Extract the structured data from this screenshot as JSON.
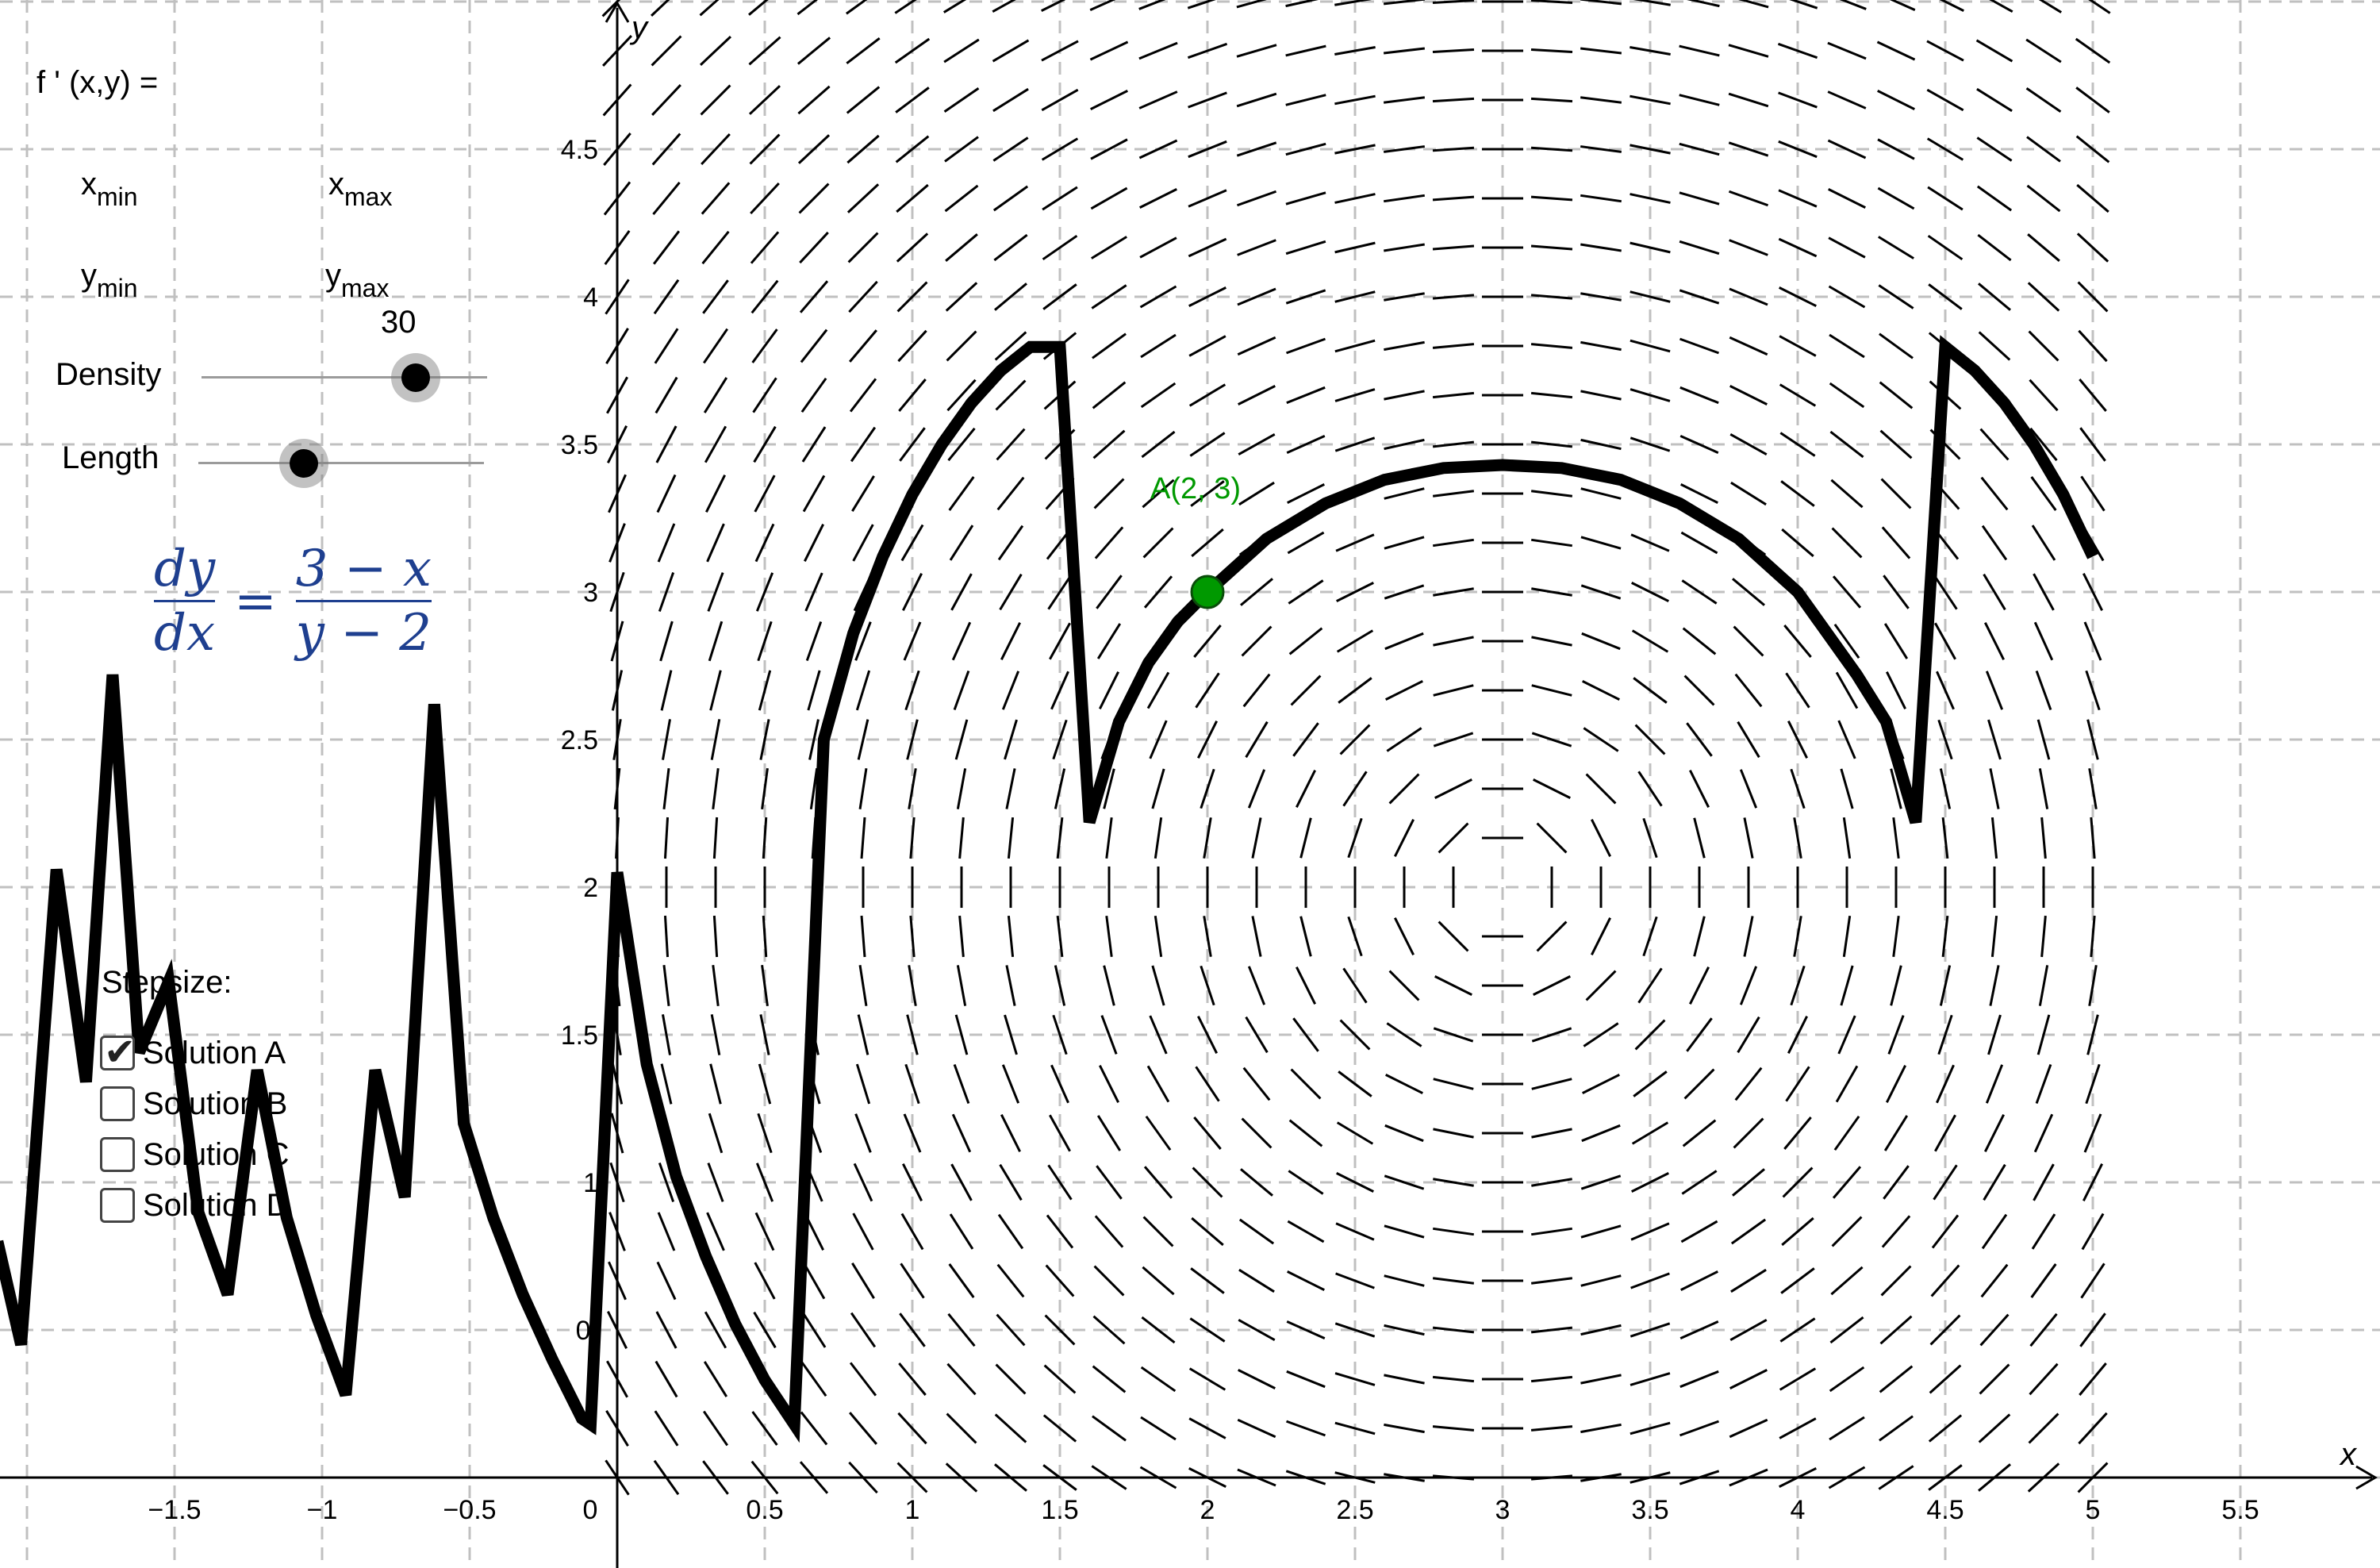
{
  "inputs": {
    "fprime_label": "f ' (x,y) =",
    "xmin_label": "x",
    "xmin_sub": "min",
    "xmax_label": "x",
    "xmax_sub": "max",
    "ymin_label": "y",
    "ymin_sub": "min",
    "ymax_label": "y",
    "ymax_sub": "max"
  },
  "sliders": {
    "density": {
      "label": "Density",
      "value": "30",
      "level": 0.75
    },
    "length": {
      "label": "Length",
      "level": 0.37
    }
  },
  "equation": {
    "lhs_num": "dy",
    "lhs_den": "dx",
    "rhs_num": "3 − x",
    "rhs_den": "y − 2"
  },
  "stepsize_label": "Stepsize:",
  "solutions": [
    {
      "label": "Solution A",
      "checked": true
    },
    {
      "label": "Solution B",
      "checked": false
    },
    {
      "label": "Solution C",
      "checked": false
    },
    {
      "label": "Solution D",
      "checked": false
    }
  ],
  "point": {
    "label": "A(2, 3)",
    "x": 2,
    "y": 3,
    "color": "#009900"
  },
  "axes": {
    "x_label": "x",
    "y_label": "y",
    "x_ticks": [
      "−1.5",
      "−1",
      "−0.5",
      "0",
      "0.5",
      "1",
      "1.5",
      "2",
      "2.5",
      "3",
      "3.5",
      "4",
      "4.5",
      "5",
      "5.5"
    ],
    "x_tick_values": [
      -1.5,
      -1,
      -0.5,
      0,
      0.5,
      1,
      1.5,
      2,
      2.5,
      3,
      3.5,
      4,
      4.5,
      5,
      5.5
    ],
    "y_ticks": [
      "0.",
      "1",
      "1.5",
      "2",
      "2.5",
      "3",
      "3.5",
      "4",
      "4.5"
    ],
    "y_tick_values": [
      0.5,
      1,
      1.5,
      2,
      2.5,
      3,
      3.5,
      4,
      4.5
    ],
    "xlim": [
      -2.1,
      5.95
    ],
    "ylim": [
      -0.3,
      5.0
    ]
  },
  "chart_data": {
    "type": "line",
    "title": "",
    "slope_field": "(3 - x) / (y - 2)",
    "field_range": {
      "x": [
        0,
        5
      ],
      "y": [
        0,
        5
      ]
    },
    "series": [
      {
        "x": [
          -2.1,
          -2.02,
          -1.9,
          -1.8,
          -1.71,
          -1.62,
          -1.52,
          -1.42,
          -1.32,
          -1.22,
          -1.12,
          -1.02,
          -0.92,
          -0.82,
          -0.72,
          -0.62,
          -0.52,
          -0.42,
          -0.32,
          -0.22,
          -0.12,
          -0.09,
          0,
          0.1,
          0.2,
          0.3,
          0.4,
          0.5,
          0.6,
          0.7,
          0.8,
          0.9,
          1.0,
          1.1,
          1.2,
          1.3,
          1.4,
          1.5,
          1.6,
          1.7,
          1.8,
          1.9,
          2.0,
          2.2,
          2.4,
          2.6,
          2.8,
          3.0,
          3.2,
          3.4,
          3.6,
          3.8,
          4.0,
          4.2,
          4.3,
          4.4,
          4.5,
          4.6,
          4.7,
          4.8,
          4.9,
          5.0
        ],
        "y": [
          0.8,
          0.45,
          2.06,
          1.34,
          2.72,
          1.44,
          1.68,
          0.9,
          0.62,
          1.38,
          0.88,
          0.55,
          0.28,
          1.38,
          0.95,
          2.62,
          1.2,
          0.88,
          0.62,
          0.4,
          0.2,
          0.18,
          2.05,
          1.4,
          1.02,
          0.75,
          0.52,
          0.33,
          0.18,
          2.5,
          2.86,
          3.12,
          3.33,
          3.5,
          3.64,
          3.75,
          3.83,
          3.83,
          2.22,
          2.56,
          2.76,
          2.9,
          3.0,
          3.18,
          3.3,
          3.38,
          3.42,
          3.43,
          3.42,
          3.38,
          3.3,
          3.18,
          3.0,
          2.72,
          2.56,
          2.22,
          3.83,
          3.75,
          3.64,
          3.5,
          3.33,
          3.12
        ]
      }
    ]
  },
  "colors": {
    "grid": "#c0c0c0",
    "curve": "#000000",
    "equation": "#1e3f8f",
    "field": "#000000"
  }
}
